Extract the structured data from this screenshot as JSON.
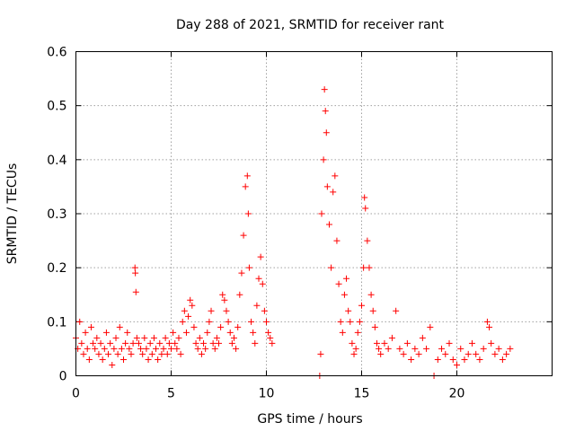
{
  "chart_data": {
    "type": "scatter",
    "title": "Day 288 of 2021, SRMTID for receiver rant",
    "xlabel": "GPS time / hours",
    "ylabel": "SRMTID / TECUs",
    "xlim": [
      0,
      25
    ],
    "ylim": [
      0,
      0.6
    ],
    "xticks": [
      0,
      5,
      10,
      15,
      20
    ],
    "xtick_labels": [
      "0",
      "5",
      "10",
      "15",
      "20"
    ],
    "yticks": [
      0,
      0.1,
      0.2,
      0.3,
      0.4,
      0.5,
      0.6
    ],
    "ytick_labels": [
      "0",
      "0.1",
      "0.2",
      "0.3",
      "0.4",
      "0.5",
      "0.6"
    ],
    "grid": true,
    "series": [
      {
        "name": "SRMTID",
        "marker": "+",
        "color": "#ff0000",
        "points": [
          [
            0.0,
            0.07
          ],
          [
            0.1,
            0.05
          ],
          [
            0.2,
            0.1
          ],
          [
            0.3,
            0.06
          ],
          [
            0.4,
            0.04
          ],
          [
            0.5,
            0.08
          ],
          [
            0.6,
            0.05
          ],
          [
            0.7,
            0.03
          ],
          [
            0.8,
            0.09
          ],
          [
            0.9,
            0.06
          ],
          [
            1.0,
            0.05
          ],
          [
            1.1,
            0.07
          ],
          [
            1.2,
            0.04
          ],
          [
            1.3,
            0.06
          ],
          [
            1.4,
            0.03
          ],
          [
            1.5,
            0.05
          ],
          [
            1.6,
            0.08
          ],
          [
            1.7,
            0.04
          ],
          [
            1.8,
            0.06
          ],
          [
            1.9,
            0.02
          ],
          [
            2.0,
            0.05
          ],
          [
            2.1,
            0.07
          ],
          [
            2.2,
            0.04
          ],
          [
            2.3,
            0.09
          ],
          [
            2.4,
            0.05
          ],
          [
            2.5,
            0.03
          ],
          [
            2.6,
            0.06
          ],
          [
            2.7,
            0.08
          ],
          [
            2.8,
            0.05
          ],
          [
            2.9,
            0.04
          ],
          [
            3.0,
            0.06
          ],
          [
            3.1,
            0.2
          ],
          [
            3.12,
            0.19
          ],
          [
            3.15,
            0.155
          ],
          [
            3.2,
            0.07
          ],
          [
            3.3,
            0.06
          ],
          [
            3.4,
            0.05
          ],
          [
            3.5,
            0.04
          ],
          [
            3.6,
            0.07
          ],
          [
            3.7,
            0.05
          ],
          [
            3.8,
            0.03
          ],
          [
            3.9,
            0.06
          ],
          [
            4.0,
            0.04
          ],
          [
            4.1,
            0.07
          ],
          [
            4.2,
            0.05
          ],
          [
            4.3,
            0.03
          ],
          [
            4.4,
            0.06
          ],
          [
            4.5,
            0.04
          ],
          [
            4.6,
            0.05
          ],
          [
            4.7,
            0.07
          ],
          [
            4.8,
            0.04
          ],
          [
            4.9,
            0.06
          ],
          [
            5.0,
            0.05
          ],
          [
            5.1,
            0.08
          ],
          [
            5.2,
            0.06
          ],
          [
            5.3,
            0.05
          ],
          [
            5.4,
            0.07
          ],
          [
            5.5,
            0.04
          ],
          [
            5.6,
            0.1
          ],
          [
            5.7,
            0.12
          ],
          [
            5.8,
            0.08
          ],
          [
            5.9,
            0.11
          ],
          [
            6.0,
            0.14
          ],
          [
            6.1,
            0.13
          ],
          [
            6.2,
            0.09
          ],
          [
            6.3,
            0.06
          ],
          [
            6.4,
            0.05
          ],
          [
            6.5,
            0.07
          ],
          [
            6.6,
            0.04
          ],
          [
            6.7,
            0.06
          ],
          [
            6.8,
            0.05
          ],
          [
            6.9,
            0.08
          ],
          [
            7.0,
            0.1
          ],
          [
            7.1,
            0.12
          ],
          [
            7.2,
            0.06
          ],
          [
            7.3,
            0.05
          ],
          [
            7.4,
            0.07
          ],
          [
            7.5,
            0.06
          ],
          [
            7.6,
            0.09
          ],
          [
            7.7,
            0.15
          ],
          [
            7.8,
            0.14
          ],
          [
            7.9,
            0.12
          ],
          [
            8.0,
            0.1
          ],
          [
            8.1,
            0.08
          ],
          [
            8.2,
            0.06
          ],
          [
            8.3,
            0.07
          ],
          [
            8.4,
            0.05
          ],
          [
            8.5,
            0.09
          ],
          [
            8.6,
            0.15
          ],
          [
            8.7,
            0.19
          ],
          [
            8.8,
            0.26
          ],
          [
            8.9,
            0.35
          ],
          [
            9.0,
            0.37
          ],
          [
            9.05,
            0.3
          ],
          [
            9.1,
            0.2
          ],
          [
            9.2,
            0.1
          ],
          [
            9.3,
            0.08
          ],
          [
            9.4,
            0.06
          ],
          [
            9.5,
            0.13
          ],
          [
            9.6,
            0.18
          ],
          [
            9.7,
            0.22
          ],
          [
            9.8,
            0.17
          ],
          [
            9.9,
            0.12
          ],
          [
            10.0,
            0.1
          ],
          [
            10.1,
            0.08
          ],
          [
            10.2,
            0.07
          ],
          [
            10.3,
            0.06
          ],
          [
            12.8,
            0.0
          ],
          [
            12.85,
            0.04
          ],
          [
            12.9,
            0.3
          ],
          [
            13.0,
            0.4
          ],
          [
            13.05,
            0.53
          ],
          [
            13.1,
            0.49
          ],
          [
            13.15,
            0.45
          ],
          [
            13.2,
            0.35
          ],
          [
            13.3,
            0.28
          ],
          [
            13.4,
            0.2
          ],
          [
            13.5,
            0.34
          ],
          [
            13.6,
            0.37
          ],
          [
            13.7,
            0.25
          ],
          [
            13.8,
            0.17
          ],
          [
            13.9,
            0.1
          ],
          [
            14.0,
            0.08
          ],
          [
            14.1,
            0.15
          ],
          [
            14.2,
            0.18
          ],
          [
            14.3,
            0.12
          ],
          [
            14.4,
            0.1
          ],
          [
            14.5,
            0.06
          ],
          [
            14.6,
            0.04
          ],
          [
            14.7,
            0.05
          ],
          [
            14.8,
            0.08
          ],
          [
            14.9,
            0.1
          ],
          [
            15.0,
            0.13
          ],
          [
            15.1,
            0.2
          ],
          [
            15.15,
            0.33
          ],
          [
            15.2,
            0.31
          ],
          [
            15.3,
            0.25
          ],
          [
            15.4,
            0.2
          ],
          [
            15.5,
            0.15
          ],
          [
            15.6,
            0.12
          ],
          [
            15.7,
            0.09
          ],
          [
            15.8,
            0.06
          ],
          [
            15.9,
            0.05
          ],
          [
            16.0,
            0.04
          ],
          [
            16.2,
            0.06
          ],
          [
            16.4,
            0.05
          ],
          [
            16.6,
            0.07
          ],
          [
            16.8,
            0.12
          ],
          [
            17.0,
            0.05
          ],
          [
            17.2,
            0.04
          ],
          [
            17.4,
            0.06
          ],
          [
            17.6,
            0.03
          ],
          [
            17.8,
            0.05
          ],
          [
            18.0,
            0.04
          ],
          [
            18.2,
            0.07
          ],
          [
            18.4,
            0.05
          ],
          [
            18.6,
            0.09
          ],
          [
            18.8,
            0.0
          ],
          [
            19.0,
            0.03
          ],
          [
            19.2,
            0.05
          ],
          [
            19.4,
            0.04
          ],
          [
            19.6,
            0.06
          ],
          [
            19.8,
            0.03
          ],
          [
            20.0,
            0.02
          ],
          [
            20.2,
            0.05
          ],
          [
            20.4,
            0.03
          ],
          [
            20.6,
            0.04
          ],
          [
            20.8,
            0.06
          ],
          [
            21.0,
            0.04
          ],
          [
            21.2,
            0.03
          ],
          [
            21.4,
            0.05
          ],
          [
            21.6,
            0.1
          ],
          [
            21.7,
            0.09
          ],
          [
            21.8,
            0.06
          ],
          [
            22.0,
            0.04
          ],
          [
            22.2,
            0.05
          ],
          [
            22.4,
            0.03
          ],
          [
            22.6,
            0.04
          ],
          [
            22.8,
            0.05
          ]
        ]
      }
    ]
  }
}
